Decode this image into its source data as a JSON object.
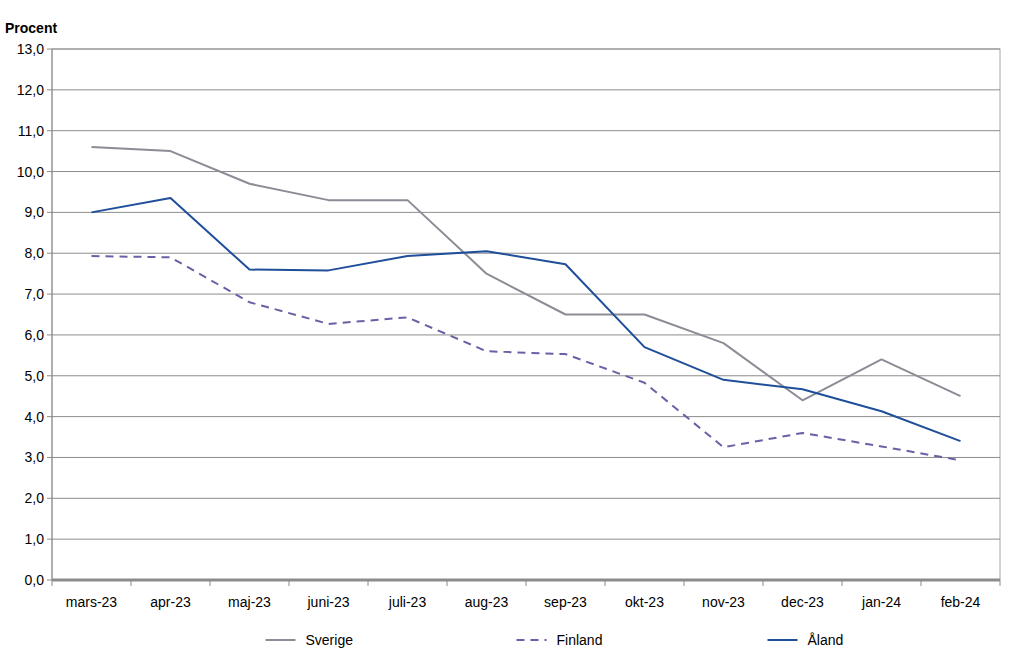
{
  "chart_data": {
    "type": "line",
    "title": "Procent",
    "categories": [
      "mars-23",
      "apr-23",
      "maj-23",
      "juni-23",
      "juli-23",
      "aug-23",
      "sep-23",
      "okt-23",
      "nov-23",
      "dec-23",
      "jan-24",
      "feb-24"
    ],
    "series": [
      {
        "name": "Sverige",
        "color": "#8c8c96",
        "line_style": "solid",
        "values": [
          10.6,
          10.5,
          9.7,
          9.3,
          9.3,
          7.5,
          6.5,
          6.5,
          5.8,
          4.4,
          5.4,
          4.5
        ]
      },
      {
        "name": "Finland",
        "color": "#6b5fa5",
        "line_style": "dashed",
        "values": [
          7.93,
          7.9,
          6.8,
          6.27,
          6.43,
          5.6,
          5.53,
          4.83,
          3.25,
          3.6,
          3.27,
          2.93
        ]
      },
      {
        "name": "Åland",
        "color": "#1f4e9a",
        "line_style": "solid",
        "values": [
          9.0,
          9.35,
          7.6,
          7.58,
          7.93,
          8.05,
          7.73,
          5.7,
          4.9,
          4.67,
          4.13,
          3.4
        ]
      }
    ],
    "ylim": [
      0,
      13
    ],
    "yticks": [
      {
        "value": 0,
        "label": "0,0"
      },
      {
        "value": 1,
        "label": "1,0"
      },
      {
        "value": 2,
        "label": "2,0"
      },
      {
        "value": 3,
        "label": "3,0"
      },
      {
        "value": 4,
        "label": "4,0"
      },
      {
        "value": 5,
        "label": "5,0"
      },
      {
        "value": 6,
        "label": "6,0"
      },
      {
        "value": 7,
        "label": "7,0"
      },
      {
        "value": 8,
        "label": "8,0"
      },
      {
        "value": 9,
        "label": "9,0"
      },
      {
        "value": 10,
        "label": "10,0"
      },
      {
        "value": 11,
        "label": "11,0"
      },
      {
        "value": 12,
        "label": "12,0"
      },
      {
        "value": 13,
        "label": "13,0"
      }
    ],
    "grid": true,
    "legend": "bottom"
  }
}
